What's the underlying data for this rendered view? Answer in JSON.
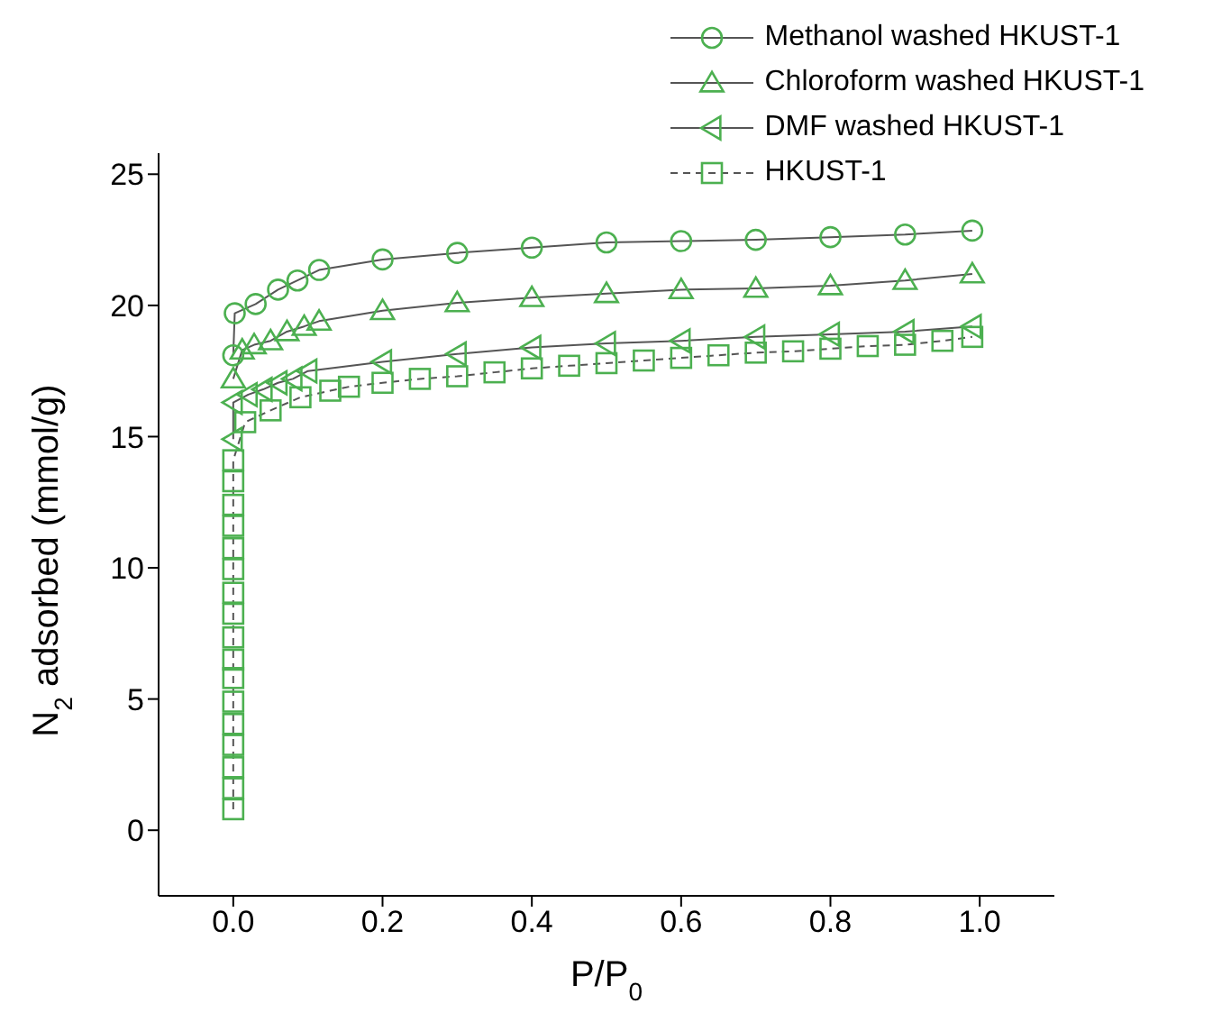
{
  "chart_data": {
    "type": "line",
    "xlabel": "P/P$_{0}$",
    "ylabel": "N$_{2}$ adsorbed (mmol/g)",
    "xlim": [
      -0.1,
      1.1
    ],
    "ylim": [
      -2.5,
      25.8
    ],
    "xticks": [
      {
        "value": 0,
        "label": "0.0"
      },
      {
        "value": 0.2,
        "label": "0.2"
      },
      {
        "value": 0.4,
        "label": "0.4"
      },
      {
        "value": 0.6,
        "label": "0.6"
      },
      {
        "value": 0.8,
        "label": "0.8"
      },
      {
        "value": 1,
        "label": "1.0"
      }
    ],
    "yticks": [
      0,
      5,
      10,
      15,
      20,
      25
    ],
    "grid": false,
    "legend": "top right",
    "series": [
      {
        "name": "Methanol washed HKUST-1",
        "color": "#4cb050",
        "marker": "circle",
        "line_style": "solid",
        "x": [
          0.0,
          0.002,
          0.03,
          0.06,
          0.086,
          0.115,
          0.2,
          0.3,
          0.4,
          0.5,
          0.6,
          0.7,
          0.8,
          0.9,
          0.99
        ],
        "values": [
          18.1,
          19.7,
          20.05,
          20.6,
          20.95,
          21.35,
          21.75,
          22.0,
          22.2,
          22.4,
          22.45,
          22.5,
          22.6,
          22.7,
          22.85
        ]
      },
      {
        "name": "Chloroform washed HKUST-1",
        "color": "#4cb050",
        "marker": "triangle",
        "line_style": "solid",
        "x": [
          0.0,
          0.012,
          0.028,
          0.05,
          0.072,
          0.095,
          0.115,
          0.2,
          0.3,
          0.4,
          0.5,
          0.6,
          0.7,
          0.8,
          0.9,
          0.99
        ],
        "values": [
          17.2,
          18.3,
          18.5,
          18.65,
          19.0,
          19.2,
          19.4,
          19.8,
          20.1,
          20.3,
          20.45,
          20.6,
          20.65,
          20.75,
          20.95,
          21.2
        ]
      },
      {
        "name": "DMF washed HKUST-1",
        "color": "#4cb050",
        "marker": "triangle-left",
        "line_style": "solid",
        "x": [
          0.0,
          0.0,
          0.02,
          0.04,
          0.06,
          0.08,
          0.1,
          0.2,
          0.3,
          0.4,
          0.5,
          0.6,
          0.7,
          0.8,
          0.9,
          0.99
        ],
        "values": [
          14.9,
          16.3,
          16.6,
          16.8,
          17.05,
          17.2,
          17.5,
          17.85,
          18.15,
          18.4,
          18.55,
          18.65,
          18.8,
          18.9,
          19.0,
          19.2
        ]
      },
      {
        "name": "HKUST-1",
        "color": "#4cb050",
        "marker": "square",
        "line_style": "dashed",
        "x": [
          0,
          0,
          0,
          0,
          0,
          0,
          0,
          0,
          0,
          0,
          0,
          0,
          0,
          0,
          0,
          0,
          0,
          0.016,
          0.05,
          0.09,
          0.13,
          0.155,
          0.2,
          0.25,
          0.3,
          0.35,
          0.4,
          0.45,
          0.5,
          0.55,
          0.6,
          0.65,
          0.7,
          0.75,
          0.8,
          0.85,
          0.9,
          0.95,
          0.99
        ],
        "values": [
          0.8,
          1.6,
          2.4,
          3.25,
          4.05,
          4.9,
          5.8,
          6.5,
          7.35,
          8.25,
          9.05,
          9.95,
          10.75,
          11.6,
          12.4,
          13.3,
          14.1,
          15.55,
          16.0,
          16.5,
          16.75,
          16.9,
          17.05,
          17.2,
          17.3,
          17.45,
          17.6,
          17.7,
          17.8,
          17.9,
          18.0,
          18.1,
          18.2,
          18.25,
          18.35,
          18.45,
          18.5,
          18.65,
          18.8
        ]
      }
    ]
  }
}
